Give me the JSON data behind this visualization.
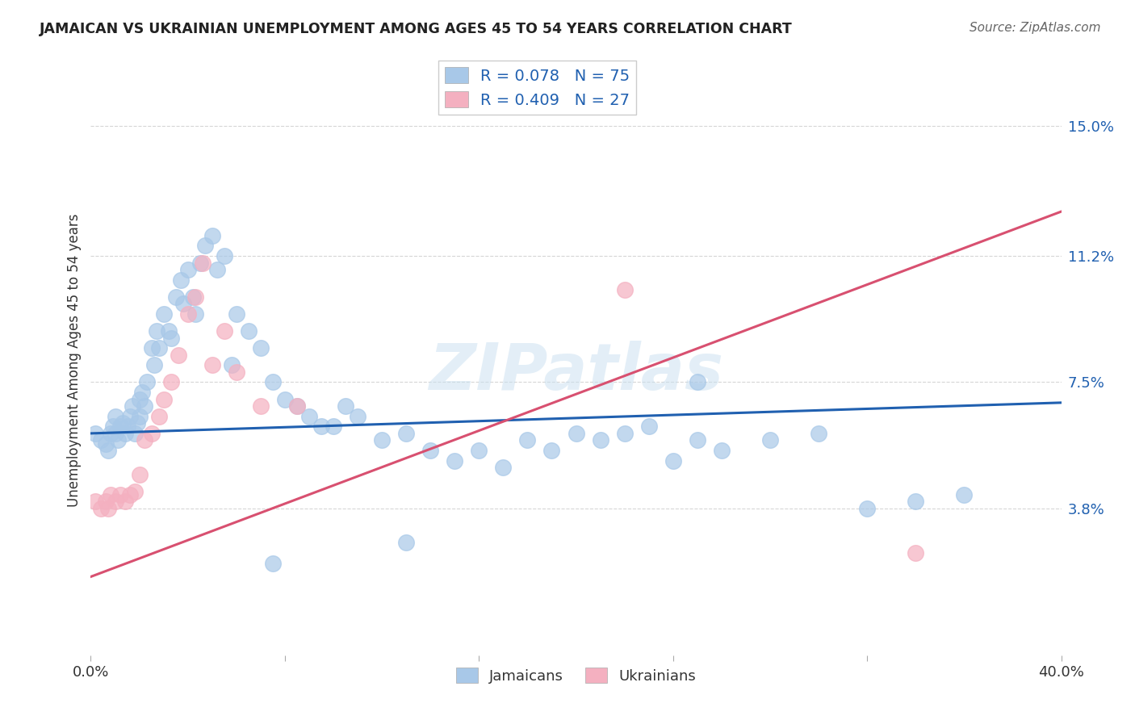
{
  "title": "JAMAICAN VS UKRAINIAN UNEMPLOYMENT AMONG AGES 45 TO 54 YEARS CORRELATION CHART",
  "source": "Source: ZipAtlas.com",
  "ylabel": "Unemployment Among Ages 45 to 54 years",
  "xlim": [
    0.0,
    0.4
  ],
  "ylim": [
    -0.005,
    0.168
  ],
  "yticks": [
    0.038,
    0.075,
    0.112,
    0.15
  ],
  "ytick_labels": [
    "3.8%",
    "7.5%",
    "11.2%",
    "15.0%"
  ],
  "xticks": [
    0.0,
    0.08,
    0.16,
    0.24,
    0.32,
    0.4
  ],
  "xtick_labels": [
    "0.0%",
    "",
    "",
    "",
    "",
    "40.0%"
  ],
  "jamaican_color": "#a8c8e8",
  "ukrainian_color": "#f4b0c0",
  "jamaican_line_color": "#2060b0",
  "ukrainian_line_color": "#d85070",
  "watermark_color": "#c8dff0",
  "jamaican_trend_start": 0.06,
  "jamaican_trend_end": 0.069,
  "ukrainian_trend_start": 0.018,
  "ukrainian_trend_end": 0.125,
  "trend_x_start": 0.0,
  "trend_x_end": 0.4,
  "jamaican_x": [
    0.002,
    0.004,
    0.006,
    0.007,
    0.008,
    0.009,
    0.01,
    0.01,
    0.011,
    0.012,
    0.013,
    0.014,
    0.015,
    0.016,
    0.017,
    0.018,
    0.019,
    0.02,
    0.02,
    0.021,
    0.022,
    0.023,
    0.025,
    0.026,
    0.027,
    0.028,
    0.03,
    0.032,
    0.033,
    0.035,
    0.037,
    0.038,
    0.04,
    0.042,
    0.043,
    0.045,
    0.047,
    0.05,
    0.052,
    0.055,
    0.058,
    0.06,
    0.065,
    0.07,
    0.075,
    0.08,
    0.085,
    0.09,
    0.095,
    0.1,
    0.105,
    0.11,
    0.12,
    0.13,
    0.14,
    0.15,
    0.16,
    0.17,
    0.18,
    0.19,
    0.2,
    0.21,
    0.22,
    0.23,
    0.24,
    0.25,
    0.26,
    0.28,
    0.3,
    0.32,
    0.34,
    0.36,
    0.25,
    0.13,
    0.075
  ],
  "jamaican_y": [
    0.06,
    0.058,
    0.057,
    0.055,
    0.06,
    0.062,
    0.065,
    0.06,
    0.058,
    0.062,
    0.063,
    0.06,
    0.062,
    0.065,
    0.068,
    0.06,
    0.063,
    0.07,
    0.065,
    0.072,
    0.068,
    0.075,
    0.085,
    0.08,
    0.09,
    0.085,
    0.095,
    0.09,
    0.088,
    0.1,
    0.105,
    0.098,
    0.108,
    0.1,
    0.095,
    0.11,
    0.115,
    0.118,
    0.108,
    0.112,
    0.08,
    0.095,
    0.09,
    0.085,
    0.075,
    0.07,
    0.068,
    0.065,
    0.062,
    0.062,
    0.068,
    0.065,
    0.058,
    0.06,
    0.055,
    0.052,
    0.055,
    0.05,
    0.058,
    0.055,
    0.06,
    0.058,
    0.06,
    0.062,
    0.052,
    0.058,
    0.055,
    0.058,
    0.06,
    0.038,
    0.04,
    0.042,
    0.075,
    0.028,
    0.022
  ],
  "ukrainian_x": [
    0.002,
    0.004,
    0.006,
    0.007,
    0.008,
    0.01,
    0.012,
    0.014,
    0.016,
    0.018,
    0.02,
    0.022,
    0.025,
    0.028,
    0.03,
    0.033,
    0.036,
    0.04,
    0.043,
    0.046,
    0.05,
    0.055,
    0.06,
    0.07,
    0.085,
    0.22,
    0.34
  ],
  "ukrainian_y": [
    0.04,
    0.038,
    0.04,
    0.038,
    0.042,
    0.04,
    0.042,
    0.04,
    0.042,
    0.043,
    0.048,
    0.058,
    0.06,
    0.065,
    0.07,
    0.075,
    0.083,
    0.095,
    0.1,
    0.11,
    0.08,
    0.09,
    0.078,
    0.068,
    0.068,
    0.102,
    0.025
  ]
}
